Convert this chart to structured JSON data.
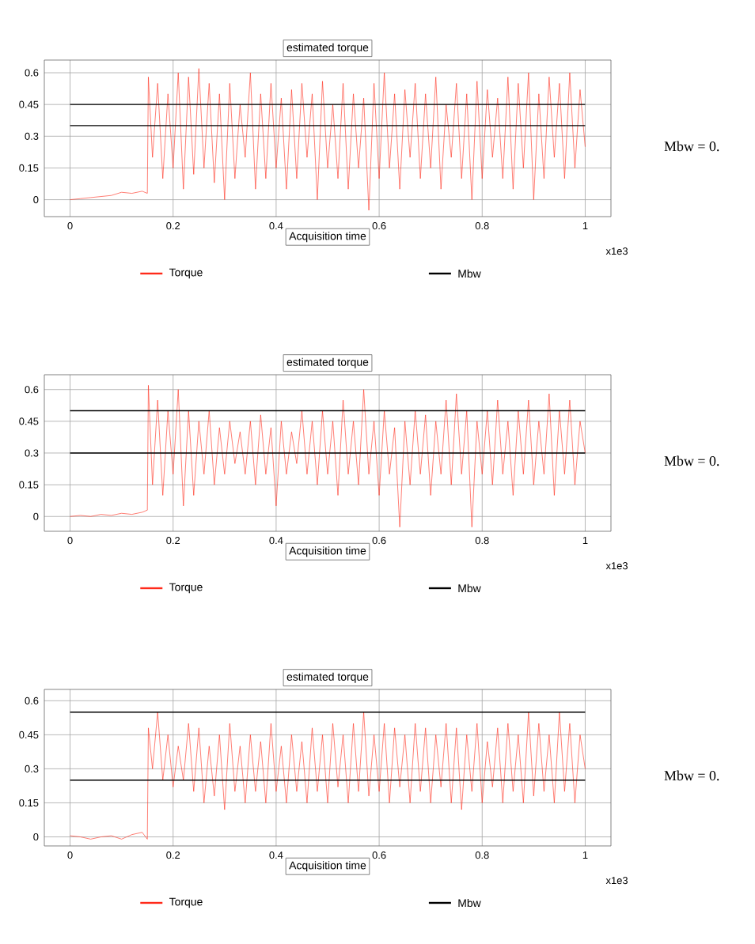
{
  "chart_data": [
    {
      "type": "line",
      "title": "estimated torque",
      "xlabel": "Acquisition time",
      "annotations": [
        "x1e3",
        "Mbw = 0."
      ],
      "xlim": [
        -0.05,
        1.05
      ],
      "ylim": [
        -0.08,
        0.66
      ],
      "xticks": [
        0,
        0.2,
        0.4,
        0.6,
        0.8,
        1
      ],
      "yticks": [
        0,
        0.15,
        0.3,
        0.45,
        0.6
      ],
      "grid": true,
      "legend": "bottom",
      "series": [
        {
          "name": "Torque",
          "color": "#ff2a1a",
          "x": [
            0,
            0.02,
            0.04,
            0.06,
            0.08,
            0.1,
            0.12,
            0.14,
            0.15,
            0.152,
            0.16,
            0.17,
            0.18,
            0.19,
            0.2,
            0.21,
            0.22,
            0.23,
            0.24,
            0.25,
            0.26,
            0.27,
            0.28,
            0.29,
            0.3,
            0.31,
            0.32,
            0.33,
            0.34,
            0.35,
            0.36,
            0.37,
            0.38,
            0.39,
            0.4,
            0.41,
            0.42,
            0.43,
            0.44,
            0.45,
            0.46,
            0.47,
            0.48,
            0.49,
            0.5,
            0.51,
            0.52,
            0.53,
            0.54,
            0.55,
            0.56,
            0.57,
            0.58,
            0.59,
            0.6,
            0.61,
            0.62,
            0.63,
            0.64,
            0.65,
            0.66,
            0.67,
            0.68,
            0.69,
            0.7,
            0.71,
            0.72,
            0.73,
            0.74,
            0.75,
            0.76,
            0.77,
            0.78,
            0.79,
            0.8,
            0.81,
            0.82,
            0.83,
            0.84,
            0.85,
            0.86,
            0.87,
            0.88,
            0.89,
            0.9,
            0.91,
            0.92,
            0.93,
            0.94,
            0.95,
            0.96,
            0.97,
            0.98,
            0.99,
            1.0
          ],
          "values": [
            0,
            0.005,
            0.01,
            0.015,
            0.02,
            0.035,
            0.03,
            0.04,
            0.03,
            0.58,
            0.2,
            0.55,
            0.1,
            0.5,
            0.15,
            0.6,
            0.05,
            0.58,
            0.12,
            0.62,
            0.15,
            0.55,
            0.08,
            0.5,
            0.0,
            0.55,
            0.1,
            0.45,
            0.2,
            0.6,
            0.05,
            0.5,
            0.1,
            0.55,
            0.15,
            0.48,
            0.05,
            0.52,
            0.1,
            0.55,
            0.2,
            0.5,
            0.0,
            0.56,
            0.15,
            0.45,
            0.1,
            0.55,
            0.05,
            0.5,
            0.15,
            0.48,
            -0.05,
            0.55,
            0.1,
            0.6,
            0.15,
            0.5,
            0.05,
            0.52,
            0.2,
            0.55,
            0.1,
            0.5,
            0.15,
            0.58,
            0.05,
            0.45,
            0.2,
            0.55,
            0.1,
            0.5,
            0.0,
            0.56,
            0.1,
            0.52,
            0.2,
            0.48,
            0.1,
            0.58,
            0.05,
            0.55,
            0.15,
            0.6,
            0.0,
            0.5,
            0.1,
            0.58,
            0.2,
            0.55,
            0.1,
            0.6,
            0.15,
            0.52,
            0.25
          ]
        },
        {
          "name": "Mbw",
          "color": "#000000",
          "x": [
            0,
            1
          ],
          "values": [
            0.45,
            0.45
          ]
        },
        {
          "color": "#000000",
          "x": [
            0,
            1
          ],
          "values": [
            0.35,
            0.35
          ]
        }
      ]
    },
    {
      "type": "line",
      "title": "estimated torque",
      "xlabel": "Acquisition time",
      "annotations": [
        "x1e3",
        "Mbw = 0."
      ],
      "xlim": [
        -0.05,
        1.05
      ],
      "ylim": [
        -0.07,
        0.67
      ],
      "xticks": [
        0,
        0.2,
        0.4,
        0.6,
        0.8,
        1
      ],
      "yticks": [
        0,
        0.15,
        0.3,
        0.45,
        0.6
      ],
      "grid": true,
      "legend": "bottom",
      "series": [
        {
          "name": "Torque",
          "color": "#ff2a1a",
          "x": [
            0,
            0.02,
            0.04,
            0.06,
            0.08,
            0.1,
            0.12,
            0.14,
            0.15,
            0.152,
            0.16,
            0.17,
            0.18,
            0.19,
            0.2,
            0.21,
            0.22,
            0.23,
            0.24,
            0.25,
            0.26,
            0.27,
            0.28,
            0.29,
            0.3,
            0.31,
            0.32,
            0.33,
            0.34,
            0.35,
            0.36,
            0.37,
            0.38,
            0.39,
            0.4,
            0.41,
            0.42,
            0.43,
            0.44,
            0.45,
            0.46,
            0.47,
            0.48,
            0.49,
            0.5,
            0.51,
            0.52,
            0.53,
            0.54,
            0.55,
            0.56,
            0.57,
            0.58,
            0.59,
            0.6,
            0.61,
            0.62,
            0.63,
            0.64,
            0.65,
            0.66,
            0.67,
            0.68,
            0.69,
            0.7,
            0.71,
            0.72,
            0.73,
            0.74,
            0.75,
            0.76,
            0.77,
            0.78,
            0.79,
            0.8,
            0.81,
            0.82,
            0.83,
            0.84,
            0.85,
            0.86,
            0.87,
            0.88,
            0.89,
            0.9,
            0.91,
            0.92,
            0.93,
            0.94,
            0.95,
            0.96,
            0.97,
            0.98,
            0.99,
            1.0
          ],
          "values": [
            0,
            0.005,
            0.0,
            0.01,
            0.005,
            0.015,
            0.01,
            0.02,
            0.03,
            0.62,
            0.15,
            0.55,
            0.1,
            0.5,
            0.2,
            0.6,
            0.05,
            0.5,
            0.1,
            0.45,
            0.2,
            0.5,
            0.15,
            0.42,
            0.2,
            0.45,
            0.25,
            0.4,
            0.2,
            0.45,
            0.15,
            0.48,
            0.2,
            0.42,
            0.05,
            0.45,
            0.2,
            0.4,
            0.25,
            0.5,
            0.2,
            0.45,
            0.15,
            0.5,
            0.2,
            0.45,
            0.1,
            0.55,
            0.2,
            0.45,
            0.15,
            0.6,
            0.2,
            0.45,
            0.1,
            0.5,
            0.2,
            0.42,
            -0.05,
            0.45,
            0.15,
            0.5,
            0.2,
            0.48,
            0.1,
            0.45,
            0.2,
            0.55,
            0.15,
            0.58,
            0.2,
            0.5,
            -0.05,
            0.45,
            0.2,
            0.5,
            0.15,
            0.55,
            0.2,
            0.45,
            0.1,
            0.5,
            0.2,
            0.55,
            0.15,
            0.45,
            0.2,
            0.58,
            0.1,
            0.5,
            0.2,
            0.55,
            0.15,
            0.45,
            0.3
          ]
        },
        {
          "name": "Mbw",
          "color": "#000000",
          "x": [
            0,
            1
          ],
          "values": [
            0.5,
            0.5
          ]
        },
        {
          "color": "#000000",
          "x": [
            0,
            1
          ],
          "values": [
            0.3,
            0.3
          ]
        }
      ]
    },
    {
      "type": "line",
      "title": "estimated torque",
      "xlabel": "Acquisition time",
      "annotations": [
        "x1e3",
        "Mbw = 0."
      ],
      "xlim": [
        -0.05,
        1.05
      ],
      "ylim": [
        -0.04,
        0.65
      ],
      "xticks": [
        0,
        0.2,
        0.4,
        0.6,
        0.8,
        1
      ],
      "yticks": [
        0,
        0.15,
        0.3,
        0.45,
        0.6
      ],
      "grid": true,
      "legend": "bottom",
      "series": [
        {
          "name": "Torque",
          "color": "#ff2a1a",
          "x": [
            0,
            0.02,
            0.04,
            0.06,
            0.08,
            0.1,
            0.12,
            0.14,
            0.15,
            0.152,
            0.16,
            0.17,
            0.18,
            0.19,
            0.2,
            0.21,
            0.22,
            0.23,
            0.24,
            0.25,
            0.26,
            0.27,
            0.28,
            0.29,
            0.3,
            0.31,
            0.32,
            0.33,
            0.34,
            0.35,
            0.36,
            0.37,
            0.38,
            0.39,
            0.4,
            0.41,
            0.42,
            0.43,
            0.44,
            0.45,
            0.46,
            0.47,
            0.48,
            0.49,
            0.5,
            0.51,
            0.52,
            0.53,
            0.54,
            0.55,
            0.56,
            0.57,
            0.58,
            0.59,
            0.6,
            0.61,
            0.62,
            0.63,
            0.64,
            0.65,
            0.66,
            0.67,
            0.68,
            0.69,
            0.7,
            0.71,
            0.72,
            0.73,
            0.74,
            0.75,
            0.76,
            0.77,
            0.78,
            0.79,
            0.8,
            0.81,
            0.82,
            0.83,
            0.84,
            0.85,
            0.86,
            0.87,
            0.88,
            0.89,
            0.9,
            0.91,
            0.92,
            0.93,
            0.94,
            0.95,
            0.96,
            0.97,
            0.98,
            0.99,
            1.0
          ],
          "values": [
            0.005,
            0.0,
            -0.01,
            0.0,
            0.005,
            -0.01,
            0.01,
            0.02,
            -0.01,
            0.48,
            0.3,
            0.55,
            0.25,
            0.45,
            0.22,
            0.4,
            0.25,
            0.5,
            0.2,
            0.48,
            0.15,
            0.4,
            0.18,
            0.45,
            0.12,
            0.5,
            0.2,
            0.4,
            0.15,
            0.45,
            0.2,
            0.42,
            0.15,
            0.5,
            0.2,
            0.4,
            0.15,
            0.45,
            0.2,
            0.42,
            0.15,
            0.48,
            0.2,
            0.45,
            0.15,
            0.5,
            0.22,
            0.45,
            0.15,
            0.5,
            0.2,
            0.55,
            0.18,
            0.45,
            0.2,
            0.5,
            0.15,
            0.48,
            0.22,
            0.45,
            0.15,
            0.5,
            0.2,
            0.48,
            0.15,
            0.45,
            0.22,
            0.5,
            0.15,
            0.48,
            0.12,
            0.45,
            0.2,
            0.5,
            0.15,
            0.42,
            0.22,
            0.48,
            0.15,
            0.5,
            0.2,
            0.45,
            0.15,
            0.55,
            0.18,
            0.5,
            0.2,
            0.45,
            0.15,
            0.55,
            0.2,
            0.5,
            0.15,
            0.45,
            0.3
          ]
        },
        {
          "name": "Mbw",
          "color": "#000000",
          "x": [
            0,
            1
          ],
          "values": [
            0.55,
            0.55
          ]
        },
        {
          "color": "#000000",
          "x": [
            0,
            1
          ],
          "values": [
            0.25,
            0.25
          ]
        }
      ]
    }
  ]
}
